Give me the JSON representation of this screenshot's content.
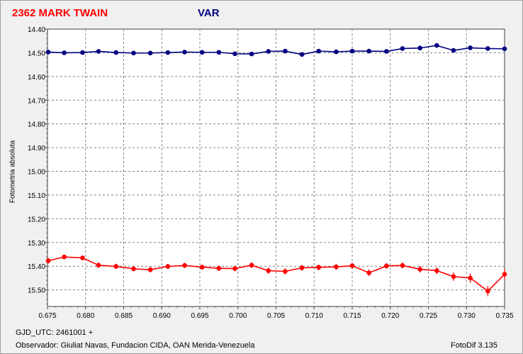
{
  "header": {
    "star_title": "2362 MARK TWAIN",
    "series_title": "VAR"
  },
  "footer": {
    "gjd": "GJD_UTC: 2461001 +",
    "observer": "Observador: Giuliat Navas, Fundacion CIDA, OAN  Merida-Venezuela",
    "software": "FotoDif 3.135"
  },
  "colors": {
    "var": "#000080",
    "red": "#ff0000"
  },
  "chart_data": {
    "type": "scatter",
    "title": "",
    "xlabel": "",
    "ylabel": "Fotometria absoluta",
    "xlim": [
      0.675,
      0.735
    ],
    "ylim": [
      14.4,
      15.57
    ],
    "y_inverted": true,
    "grid": true,
    "x_ticks": [
      "0.675",
      "0.680",
      "0.685",
      "0.690",
      "0.695",
      "0.700",
      "0.705",
      "0.710",
      "0.715",
      "0.720",
      "0.725",
      "0.730",
      "0.735"
    ],
    "y_ticks": [
      "14.40",
      "14.50",
      "14.60",
      "14.70",
      "14.80",
      "14.90",
      "15.00",
      "15.10",
      "15.20",
      "15.30",
      "15.40",
      "15.50"
    ],
    "series": [
      {
        "name": "VAR",
        "color": "#000080",
        "x": [
          0.6751,
          0.6772,
          0.6796,
          0.6817,
          0.684,
          0.6863,
          0.6885,
          0.6908,
          0.693,
          0.6953,
          0.6975,
          0.6996,
          0.7018,
          0.704,
          0.7062,
          0.7084,
          0.7106,
          0.7129,
          0.715,
          0.7172,
          0.7195,
          0.7216,
          0.7239,
          0.7261,
          0.7283,
          0.7305,
          0.7328,
          0.735
        ],
        "y": [
          14.497,
          14.5,
          14.499,
          14.494,
          14.499,
          14.501,
          14.501,
          14.499,
          14.497,
          14.498,
          14.498,
          14.504,
          14.505,
          14.494,
          14.493,
          14.507,
          14.493,
          14.496,
          14.493,
          14.493,
          14.494,
          14.482,
          14.48,
          14.469,
          14.49,
          14.479,
          14.482,
          14.483
        ],
        "yerr": [
          0.005,
          0.005,
          0.005,
          0.005,
          0.005,
          0.005,
          0.005,
          0.005,
          0.005,
          0.005,
          0.005,
          0.006,
          0.006,
          0.005,
          0.005,
          0.006,
          0.005,
          0.005,
          0.005,
          0.005,
          0.005,
          0.006,
          0.006,
          0.007,
          0.008,
          0.008,
          0.007,
          0.008
        ]
      },
      {
        "name": "",
        "color": "#ff0000",
        "x": [
          0.6751,
          0.6772,
          0.6796,
          0.6817,
          0.684,
          0.6863,
          0.6885,
          0.6908,
          0.693,
          0.6953,
          0.6975,
          0.6996,
          0.7018,
          0.704,
          0.7062,
          0.7084,
          0.7106,
          0.7129,
          0.715,
          0.7172,
          0.7195,
          0.7216,
          0.7239,
          0.7261,
          0.7283,
          0.7305,
          0.7328,
          0.735
        ],
        "y": [
          15.377,
          15.361,
          15.365,
          15.396,
          15.401,
          15.411,
          15.415,
          15.401,
          15.397,
          15.404,
          15.409,
          15.41,
          15.396,
          15.419,
          15.422,
          15.407,
          15.405,
          15.403,
          15.398,
          15.428,
          15.399,
          15.397,
          15.413,
          15.419,
          15.444,
          15.45,
          15.505,
          15.434
        ],
        "yerr": [
          0.012,
          0.01,
          0.01,
          0.011,
          0.011,
          0.011,
          0.012,
          0.011,
          0.011,
          0.011,
          0.011,
          0.012,
          0.012,
          0.013,
          0.013,
          0.012,
          0.012,
          0.012,
          0.012,
          0.014,
          0.012,
          0.012,
          0.014,
          0.014,
          0.018,
          0.02,
          0.022,
          0.022
        ]
      }
    ]
  }
}
